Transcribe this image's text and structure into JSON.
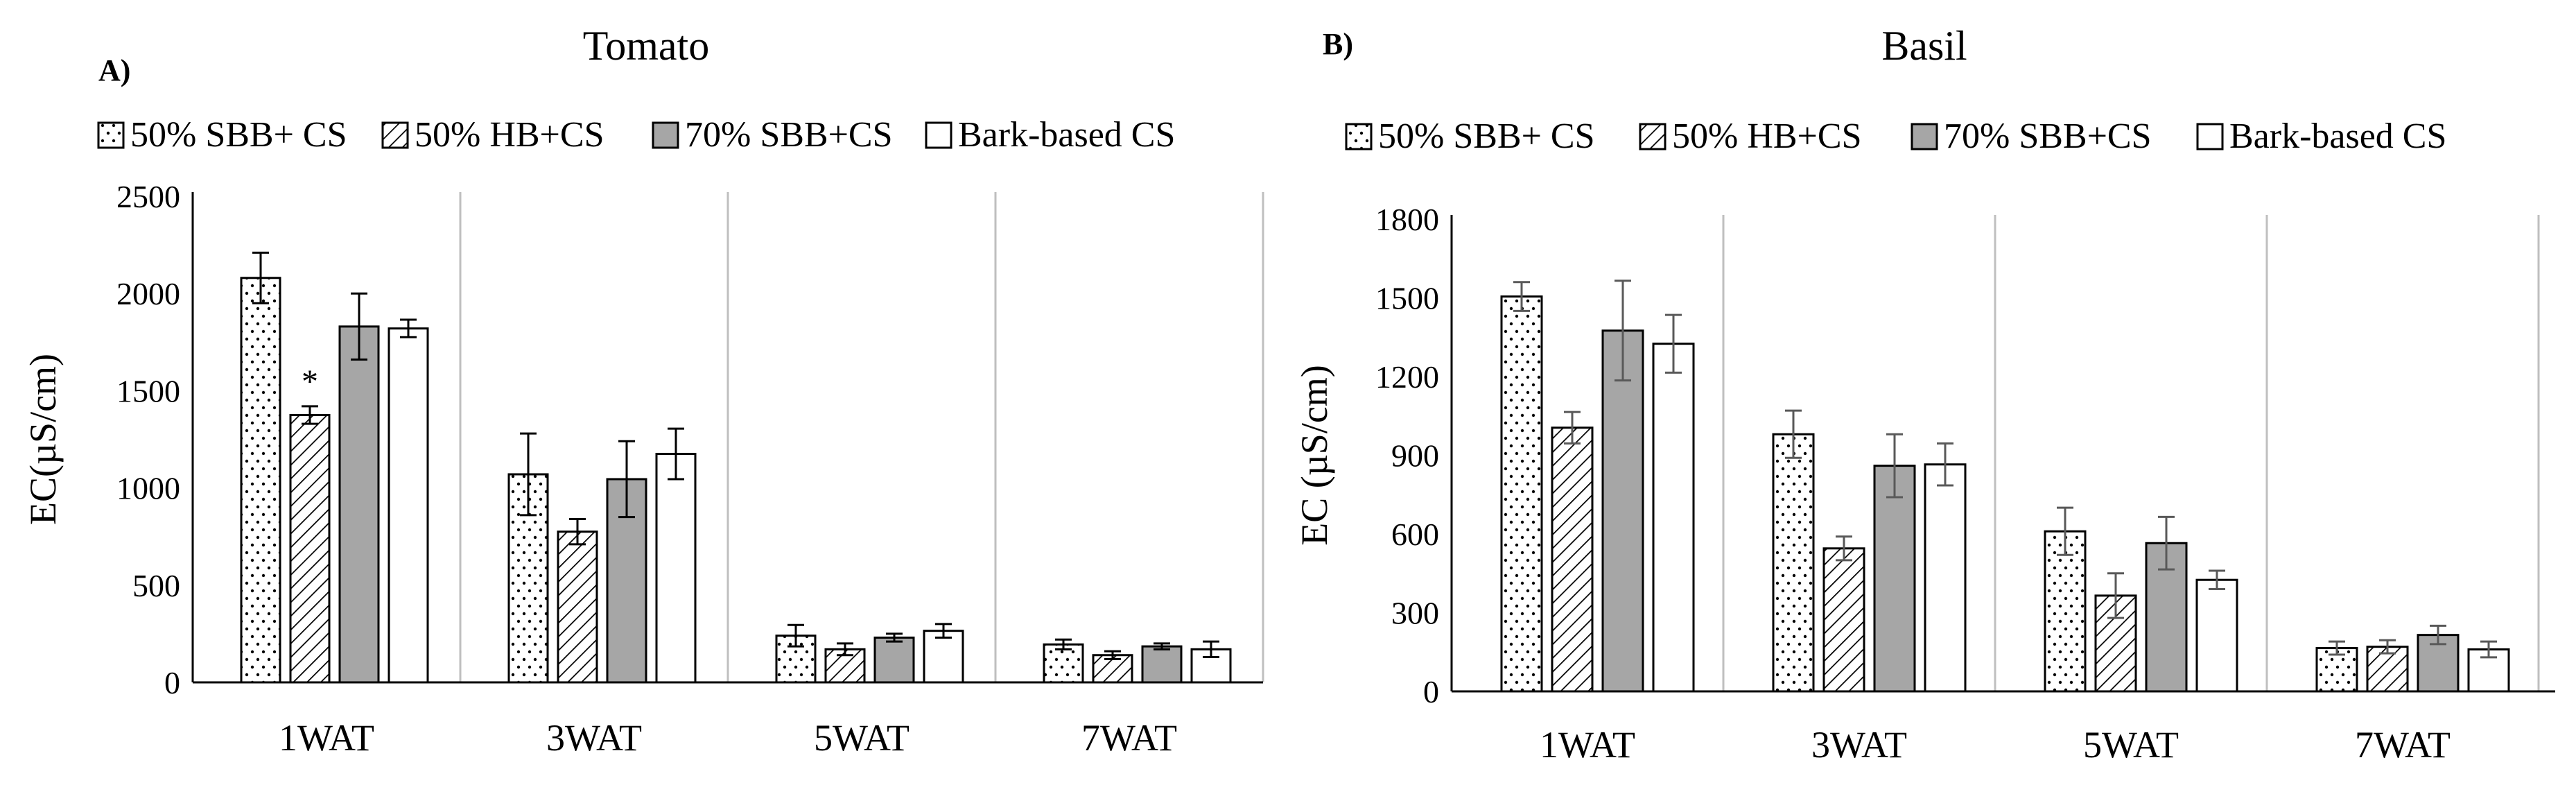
{
  "panels": [
    {
      "label": "A)",
      "title": "Tomato",
      "legend": [
        "50% SBB+ CS",
        "50% HB+CS",
        "70% SBB+CS",
        "Bark-based CS"
      ]
    },
    {
      "label": "B)",
      "title": "Basil",
      "legend": [
        "50% SBB+ CS",
        "50% HB+CS",
        "70% SBB+CS",
        "Bark-based CS"
      ]
    }
  ],
  "chart_data": [
    {
      "type": "bar",
      "title": "Tomato",
      "panel_label": "A)",
      "xlabel": "",
      "ylabel": "EC(µS/cm)",
      "ylim": [
        0,
        2500
      ],
      "yticks": [
        0,
        500,
        1000,
        1500,
        2000,
        2500
      ],
      "categories": [
        "1WAT",
        "3WAT",
        "5WAT",
        "7WAT"
      ],
      "series": [
        {
          "name": "50% SBB+ CS",
          "pattern": "dots",
          "values": [
            2080,
            1070,
            240,
            195
          ],
          "errors": [
            130,
            210,
            55,
            25
          ]
        },
        {
          "name": "50% HB+CS",
          "pattern": "hatch",
          "values": [
            1375,
            775,
            170,
            140
          ],
          "errors": [
            45,
            65,
            30,
            20
          ]
        },
        {
          "name": "70% SBB+CS",
          "pattern": "gray",
          "values": [
            1830,
            1045,
            230,
            185
          ],
          "errors": [
            170,
            195,
            20,
            15
          ]
        },
        {
          "name": "Bark-based CS",
          "pattern": "white",
          "values": [
            1820,
            1175,
            265,
            170
          ],
          "errors": [
            45,
            130,
            35,
            40
          ]
        }
      ],
      "annotations": [
        {
          "category": "1WAT",
          "series": "50% HB+CS",
          "text": "*"
        }
      ],
      "legend_position": "top",
      "grid": false,
      "colors": {
        "gray_fill": "#a6a6a6",
        "separator": "#bfbfbf",
        "error_bar": "#000000"
      }
    },
    {
      "type": "bar",
      "title": "Basil",
      "panel_label": "B)",
      "xlabel": "",
      "ylabel": "EC (µS/cm)",
      "ylim": [
        0,
        1800
      ],
      "yticks": [
        0,
        300,
        600,
        900,
        1200,
        1500,
        1800
      ],
      "categories": [
        "1WAT",
        "3WAT",
        "5WAT",
        "7WAT"
      ],
      "series": [
        {
          "name": "50% SBB+ CS",
          "pattern": "dots",
          "values": [
            1505,
            980,
            610,
            165
          ],
          "errors": [
            55,
            90,
            90,
            25
          ]
        },
        {
          "name": "50% HB+CS",
          "pattern": "hatch",
          "values": [
            1005,
            545,
            365,
            170
          ],
          "errors": [
            60,
            45,
            85,
            25
          ]
        },
        {
          "name": "70% SBB+CS",
          "pattern": "gray",
          "values": [
            1375,
            860,
            565,
            215
          ],
          "errors": [
            190,
            120,
            100,
            35
          ]
        },
        {
          "name": "Bark-based CS",
          "pattern": "white",
          "values": [
            1325,
            865,
            425,
            160
          ],
          "errors": [
            110,
            80,
            35,
            30
          ]
        }
      ],
      "annotations": [],
      "legend_position": "top",
      "grid": false,
      "colors": {
        "gray_fill": "#a6a6a6",
        "separator": "#bfbfbf",
        "error_bar": "#595959"
      }
    }
  ]
}
